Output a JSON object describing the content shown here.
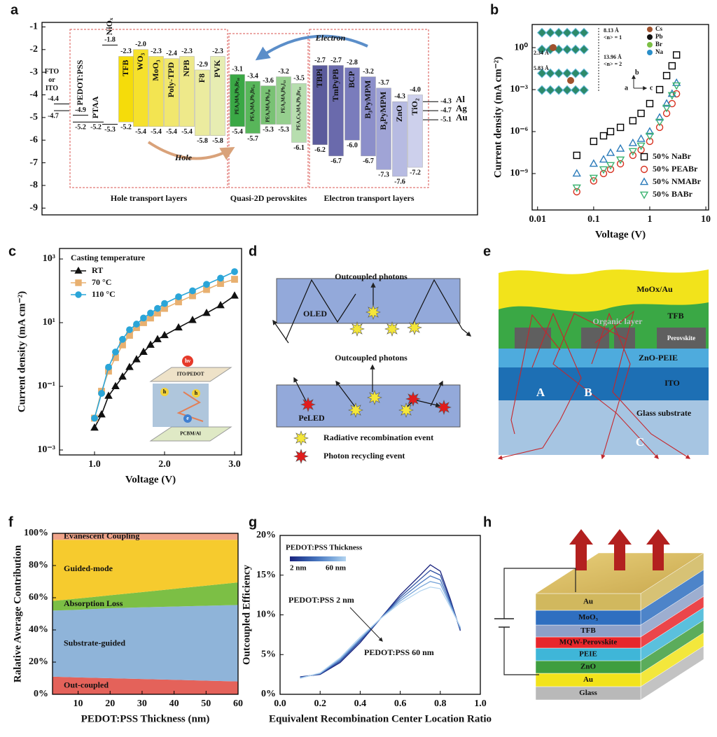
{
  "chart_data": [
    {
      "type": "energy",
      "panel": "a",
      "ylim": [
        -9.3,
        -0.8
      ],
      "yticks": [
        -1,
        -2,
        -3,
        -4,
        -5,
        -6,
        -7,
        -8,
        -9
      ],
      "materials": [
        {
          "name": [
            "FTO",
            "or",
            "ITO"
          ],
          "levels": [
            -4.4,
            -4.7
          ]
        },
        {
          "name": "PEDOT:PSS",
          "levels": [
            -4.9,
            -5.2
          ]
        },
        {
          "name": "PTAA",
          "levels": [
            -5.2
          ]
        },
        {
          "name": "NiOₓ",
          "levels": [
            -1.8,
            -5.3
          ]
        },
        {
          "name": "TFB",
          "levels": [
            -2.3,
            -5.2
          ],
          "color": "#f5dc0a"
        },
        {
          "name": "WO₃",
          "levels": [
            {
              "value": -2,
              "label": "-2.0"
            },
            -5.4
          ],
          "color": "#f6e12c"
        },
        {
          "name": "MoO₃",
          "levels": [
            -2.3,
            -5.4
          ],
          "color": "#f3e451"
        },
        {
          "name": "Poly-TPD",
          "levels": [
            -2.4,
            -5.4
          ],
          "color": "#f1e76e"
        },
        {
          "name": "NPB",
          "levels": [
            -2.3,
            -5.4
          ],
          "color": "#eee98a"
        },
        {
          "name": "F8",
          "levels": [
            -2.9,
            -5.8
          ],
          "color": "#ebeb9f"
        },
        {
          "name": "PVK",
          "levels": [
            -2.3,
            -5.8
          ],
          "color": "#e7edb2"
        },
        {
          "name": "PEA₂MA₂Pb₃Br₁₀",
          "levels": [
            -3.1,
            -5.4
          ],
          "color": "#3aa845"
        },
        {
          "name": "PEA₂MA₃Pb₄Br₁₃",
          "levels": [
            -3.4,
            -5.7
          ],
          "color": "#58b65a"
        },
        {
          "name": "PEA₂MA₂Pb₃I₁₀",
          "levels": [
            -3.6,
            -5.3
          ],
          "color": "#79c274"
        },
        {
          "name": "PEA₂MA₃Pb₄I₁₃",
          "levels": [
            -3.2,
            -5.3
          ],
          "color": "#96cf8e"
        },
        {
          "name": "PEA₂Cs₃MA₃Pb₄Br₁₃",
          "levels": [
            -3.5,
            -6.1
          ],
          "color": "#b7deaf"
        },
        {
          "name": "TBPi",
          "levels": [
            -2.7,
            -6.2
          ],
          "color": "#5b5b9c"
        },
        {
          "name": "TmPyPB",
          "levels": [
            -2.7,
            -6.7
          ],
          "color": "#6a6aac"
        },
        {
          "name": "BCP",
          "levels": [
            -2.8,
            {
              "value": -6,
              "label": "-6.0"
            }
          ],
          "color": "#7a7cbc"
        },
        {
          "name": "B₃PyMPM",
          "levels": [
            -3.2,
            -6.7
          ],
          "color": "#8c8fca"
        },
        {
          "name": "B₄PyMPM",
          "levels": [
            -3.7,
            -7.3
          ],
          "color": "#a0a4d6"
        },
        {
          "name": "ZnO",
          "levels": [
            -4.3,
            -7.6
          ],
          "color": "#b7bbe2"
        },
        {
          "name": "TiO₂",
          "levels": [
            {
              "value": -4,
              "label": "-4.0"
            },
            -7.2
          ],
          "color": "#cdd0ec"
        }
      ],
      "electrodes": [
        {
          "name": "Al",
          "level": -4.3
        },
        {
          "name": "Ag",
          "level": -4.7
        },
        {
          "name": "Au",
          "level": -5.1
        }
      ],
      "groups": [
        "Hole transport layers",
        "Quasi-2D perovskites",
        "Electron transport layers"
      ],
      "electron_label": "Electron",
      "hole_label": "Hole"
    },
    {
      "type": "scatter",
      "panel": "b",
      "xlog": true,
      "ylog": true,
      "x_label": "Voltage (V)",
      "y_label": "Current density (mA cm⁻²)",
      "xlim": [
        0.008,
        11.2
      ],
      "xticks": [
        0.01,
        0.1,
        1,
        10
      ],
      "ylim": [
        2.5e-12,
        45
      ],
      "yticks": [
        {
          "value": 1e-09,
          "label": "10⁻⁹"
        },
        {
          "value": 1e-06,
          "label": "10⁻⁶"
        },
        {
          "value": 0.001,
          "label": "10⁻³"
        },
        {
          "value": 1,
          "label": "10⁰"
        }
      ],
      "legend": "lower right",
      "x": [
        0.05,
        0.1,
        0.15,
        0.2,
        0.3,
        0.5,
        0.7,
        1,
        1.5,
        2,
        2.5,
        3
      ],
      "series": [
        {
          "name": "50% NaBr",
          "color": "#000000",
          "marker": "square",
          "values": [
            2e-08,
            2e-07,
            5e-07,
            1e-06,
            2e-06,
            6e-06,
            2e-05,
            0.0001,
            0.001,
            0.01,
            0.05,
            0.3
          ]
        },
        {
          "name": "50% PEABr",
          "color": "#d7301f",
          "marker": "circle",
          "values": [
            5e-11,
            3e-10,
            1e-09,
            2e-09,
            5e-09,
            2e-08,
            5e-08,
            2e-07,
            2e-06,
            2e-05,
            0.0001,
            0.0005
          ]
        },
        {
          "name": "50% NMABr",
          "color": "#2b7bba",
          "marker": "triangle",
          "values": [
            1e-09,
            5e-09,
            1e-08,
            3e-08,
            6e-08,
            1.5e-07,
            3e-07,
            1e-06,
            1e-05,
            0.0001,
            0.0005,
            0.003
          ]
        },
        {
          "name": "50% BABr",
          "color": "#3cb371",
          "marker": "triangle-down",
          "values": [
            1e-10,
            5e-10,
            2e-09,
            4e-09,
            1e-08,
            4e-08,
            1e-07,
            5e-07,
            5e-06,
            5e-05,
            0.0004,
            0.002
          ]
        }
      ],
      "inset": {
        "elements": [
          "Cs",
          "Pb",
          "Br",
          "Na"
        ],
        "dims": [
          "8.13 Å",
          "<n> = 1",
          "13.96 Å",
          "<n> = 2",
          "2.34 Å",
          "5.83 Å"
        ],
        "axes": [
          "b",
          "a",
          "c"
        ]
      }
    },
    {
      "type": "line",
      "panel": "c",
      "ylog": true,
      "x_label": "Voltage (V)",
      "y_label": "Current density (mA cm⁻²)",
      "xlim": [
        0.5,
        3.1
      ],
      "xticks": [
        {
          "value": 1,
          "label": "1.0"
        },
        {
          "value": 2,
          "label": "2.0"
        },
        {
          "value": 3,
          "label": "3.0"
        }
      ],
      "ylim": [
        0.0007,
        2140
      ],
      "yticks": [
        {
          "value": 0.001,
          "label": "10⁻³"
        },
        {
          "value": 0.1,
          "label": "10⁻¹"
        },
        {
          "value": 10,
          "label": "10¹"
        },
        {
          "value": 1000,
          "label": "10³"
        }
      ],
      "legend": "upper left",
      "legend_title": "Casting temperature",
      "x": [
        1.0,
        1.1,
        1.2,
        1.3,
        1.4,
        1.5,
        1.6,
        1.7,
        1.8,
        1.9,
        2.0,
        2.2,
        2.4,
        2.6,
        2.8,
        3.0
      ],
      "series": [
        {
          "name": "RT",
          "color": "#111111",
          "marker": "triangle",
          "values": [
            0.005,
            0.013,
            0.05,
            0.1,
            0.2,
            0.4,
            0.7,
            1.2,
            2,
            3,
            4,
            7,
            12,
            20,
            35,
            70
          ]
        },
        {
          "name": "70 °C",
          "color": "#e8b070",
          "marker": "square",
          "values": [
            0.01,
            0.07,
            0.3,
            0.8,
            2,
            4,
            7,
            10,
            14,
            20,
            28,
            45,
            70,
            110,
            170,
            230
          ]
        },
        {
          "name": "110 °C",
          "color": "#2aa5d8",
          "marker": "circle",
          "values": [
            0.01,
            0.06,
            0.4,
            1.2,
            3,
            6,
            9,
            14,
            20,
            28,
            40,
            65,
            100,
            160,
            250,
            400
          ]
        }
      ],
      "inset": {
        "photon": "hν",
        "top": "ITO/PEDOT",
        "holes": [
          "h",
          "h"
        ],
        "electron": "e",
        "bottom": "PCBM/Al"
      }
    },
    {
      "type": "area",
      "panel": "f",
      "x_label": "PEDOT:PSS Thickness (nm)",
      "y_label": "Ralative Average Contribution",
      "xlim": [
        2,
        60
      ],
      "xticks": [
        10,
        20,
        30,
        40,
        50,
        60
      ],
      "ylim": [
        0,
        100
      ],
      "yticks": [
        {
          "value": 0,
          "label": "0%"
        },
        {
          "value": 20,
          "label": "20%"
        },
        {
          "value": 40,
          "label": "40%"
        },
        {
          "value": 60,
          "label": "60%"
        },
        {
          "value": 80,
          "label": "80%"
        },
        {
          "value": 100,
          "label": "100%"
        }
      ],
      "x": [
        2,
        10,
        20,
        30,
        40,
        50,
        60
      ],
      "series": [
        {
          "name": "Out-coupled",
          "color": "#e4625a",
          "values": [
            11,
            10.5,
            10,
            9.5,
            9,
            8.5,
            8
          ]
        },
        {
          "name": "Substrate-guided",
          "color": "#8fb4d9",
          "values": [
            41,
            42,
            43.5,
            44.5,
            45.5,
            46.5,
            47.5
          ]
        },
        {
          "name": "Absorption Loss",
          "color": "#7cbf45",
          "values": [
            6,
            7,
            8,
            9.5,
            11,
            12.5,
            14
          ]
        },
        {
          "name": "Guided-mode",
          "color": "#f6cb2e",
          "values": [
            38,
            36.5,
            34.5,
            32.5,
            30.5,
            28.5,
            26.5
          ]
        },
        {
          "name": "Evanescent Coupling",
          "color": "#f0a48a",
          "values": [
            4,
            4,
            4,
            4,
            4,
            4,
            4
          ]
        }
      ]
    },
    {
      "type": "line",
      "panel": "g",
      "x_label": "Equivalent Recombination Center Location Ratio",
      "y_label": "Outcoupled Efficiency",
      "xlim": [
        0,
        1
      ],
      "xticks": [
        {
          "value": 0,
          "label": "0.0"
        },
        {
          "value": 0.2,
          "label": "0.2"
        },
        {
          "value": 0.4,
          "label": "0.4"
        },
        {
          "value": 0.6,
          "label": "0.6"
        },
        {
          "value": 0.8,
          "label": "0.8"
        },
        {
          "value": 1,
          "label": "1.0"
        }
      ],
      "ylim": [
        0,
        20
      ],
      "yticks": [
        {
          "value": 0,
          "label": "0%"
        },
        {
          "value": 5,
          "label": "5%"
        },
        {
          "value": 10,
          "label": "10%"
        },
        {
          "value": 15,
          "label": "15%"
        },
        {
          "value": 20,
          "label": "20%"
        }
      ],
      "legend_title": "PEDOT:PSS Thickness",
      "x": [
        0.1,
        0.2,
        0.3,
        0.4,
        0.5,
        0.6,
        0.7,
        0.75,
        0.8,
        0.85,
        0.9
      ],
      "series": [
        {
          "name": "2 nm",
          "color": "#1a237e",
          "values": [
            2.2,
            2.5,
            4.0,
            6.5,
            9.5,
            12.5,
            15.0,
            16.3,
            15.5,
            12.0,
            8.0
          ]
        },
        {
          "color": "#2c4ea0",
          "values": [
            2.15,
            2.55,
            4.15,
            6.7,
            9.5,
            12.25,
            14.5,
            15.6,
            15.0,
            11.75,
            8.1
          ]
        },
        {
          "color": "#4a78c0",
          "values": [
            2.1,
            2.6,
            4.3,
            6.85,
            9.5,
            12.0,
            14.0,
            14.9,
            14.4,
            11.5,
            8.25
          ]
        },
        {
          "color": "#79a6da",
          "values": [
            2.05,
            2.65,
            4.45,
            7.0,
            9.5,
            11.75,
            13.5,
            14.2,
            13.9,
            11.25,
            8.4
          ]
        },
        {
          "name": "60 nm",
          "color": "#b3d4f0",
          "values": [
            2.0,
            2.7,
            4.6,
            7.2,
            9.5,
            11.5,
            13.0,
            13.5,
            13.3,
            11.0,
            8.5
          ]
        }
      ],
      "annotations": [
        "PEDOT:PSS 2 nm",
        "PEDOT:PSS 60 nm"
      ]
    }
  ],
  "diagrams": {
    "d": {
      "panel": "d",
      "top_label": "Outcoupled photons",
      "oled": "OLED",
      "bottom_label": "Outcoupled photons",
      "peled": "PeLED",
      "legend": [
        "Radiative recombination event",
        "Photon recycling event"
      ]
    },
    "e": {
      "panel": "e",
      "layers": [
        "MoOx/Au",
        "TFB",
        "Organic layer",
        "Perovskite",
        "ZnO-PEIE",
        "ITO",
        "Glass substrate"
      ],
      "paths": [
        "A",
        "B",
        "C"
      ]
    },
    "h": {
      "panel": "h",
      "layers": [
        "Au",
        "MoO₃",
        "TFB",
        "MQW-Perovskite",
        "PEIE",
        "ZnO",
        "Au",
        "Glass"
      ]
    }
  }
}
